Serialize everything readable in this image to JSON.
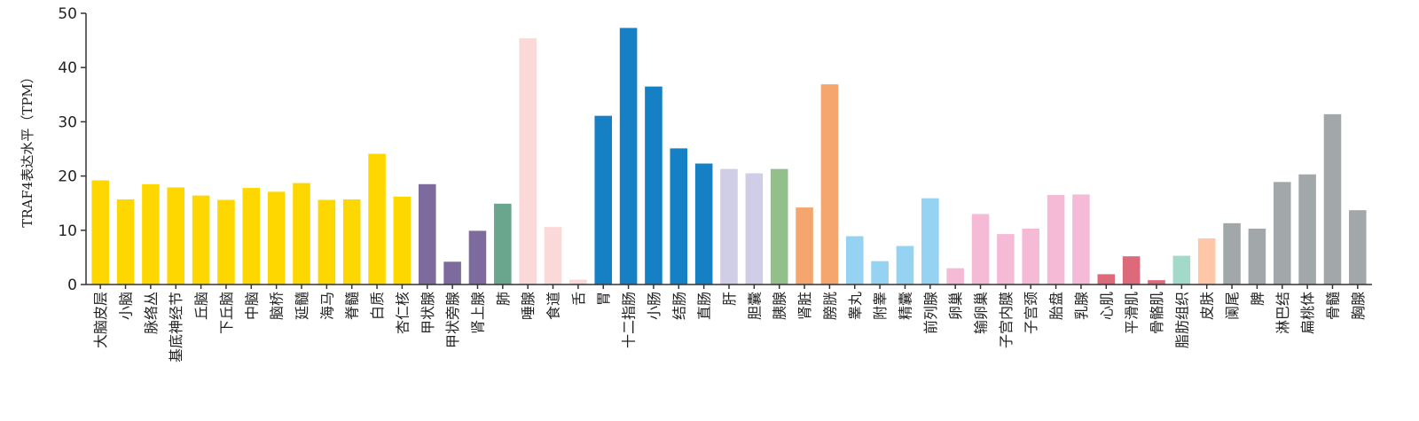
{
  "chart_data": {
    "type": "bar",
    "title": "",
    "xlabel": "",
    "ylabel": "TRAF4表达水平（TPM）",
    "ylim": [
      0,
      50
    ],
    "yticks": [
      0,
      10,
      20,
      30,
      40,
      50
    ],
    "grid": false,
    "categories": [
      "大脑皮层",
      "小脑",
      "脉络丛",
      "基底神经节",
      "丘脑",
      "下丘脑",
      "中脑",
      "脑桥",
      "延髓",
      "海马",
      "脊髓",
      "白质",
      "杏仁核",
      "甲状腺",
      "甲状旁腺",
      "肾上腺",
      "肺",
      "唾腺",
      "食道",
      "舌",
      "胃",
      "十二指肠",
      "小肠",
      "结肠",
      "直肠",
      "肝",
      "胆囊",
      "胰腺",
      "肾脏",
      "膀胱",
      "睾丸",
      "附睾",
      "精囊",
      "前列腺",
      "卵巢",
      "输卵巢",
      "子宫内膜",
      "子宫颈",
      "胎盘",
      "乳腺",
      "心肌",
      "平滑肌",
      "骨骼肌",
      "脂肪组织",
      "皮肤",
      "阑尾",
      "脾",
      "淋巴结",
      "扁桃体",
      "骨髓",
      "胸腺"
    ],
    "values": [
      19.2,
      15.7,
      18.5,
      17.9,
      16.4,
      15.6,
      17.8,
      17.1,
      18.7,
      15.6,
      15.7,
      24.1,
      16.2,
      18.5,
      4.2,
      9.9,
      14.9,
      45.4,
      10.6,
      0.9,
      31.1,
      47.3,
      36.5,
      25.1,
      22.3,
      21.3,
      20.5,
      21.3,
      14.2,
      36.9,
      8.9,
      4.3,
      7.1,
      15.9,
      3.0,
      13.0,
      9.3,
      10.3,
      16.5,
      16.6,
      1.9,
      5.2,
      0.8,
      5.3,
      8.5,
      11.3,
      10.3,
      18.9,
      20.3,
      31.4,
      13.7
    ],
    "colors": [
      "#FFD700",
      "#FFD700",
      "#FFD700",
      "#FFD700",
      "#FFD700",
      "#FFD700",
      "#FFD700",
      "#FFD700",
      "#FFD700",
      "#FFD700",
      "#FFD700",
      "#FFD700",
      "#FFD700",
      "#7E6B9E",
      "#7E6B9E",
      "#7E6B9E",
      "#6AA58E",
      "#FBD9D9",
      "#FBD9D9",
      "#FBD9D9",
      "#1680C5",
      "#1680C5",
      "#1680C5",
      "#1680C5",
      "#1680C5",
      "#D0CDE6",
      "#D0CDE6",
      "#93BF8B",
      "#F5A66E",
      "#F5A66E",
      "#96D2F2",
      "#96D2F2",
      "#96D2F2",
      "#96D2F2",
      "#F5BBD6",
      "#F5BBD6",
      "#F5BBD6",
      "#F5BBD6",
      "#F5BBD6",
      "#F5BBD6",
      "#DD6A7A",
      "#DD6A7A",
      "#DD6A7A",
      "#A3D9C9",
      "#FFC6A8",
      "#A2A7A9",
      "#A2A7A9",
      "#A2A7A9",
      "#A2A7A9",
      "#A2A7A9",
      "#A2A7A9"
    ]
  }
}
